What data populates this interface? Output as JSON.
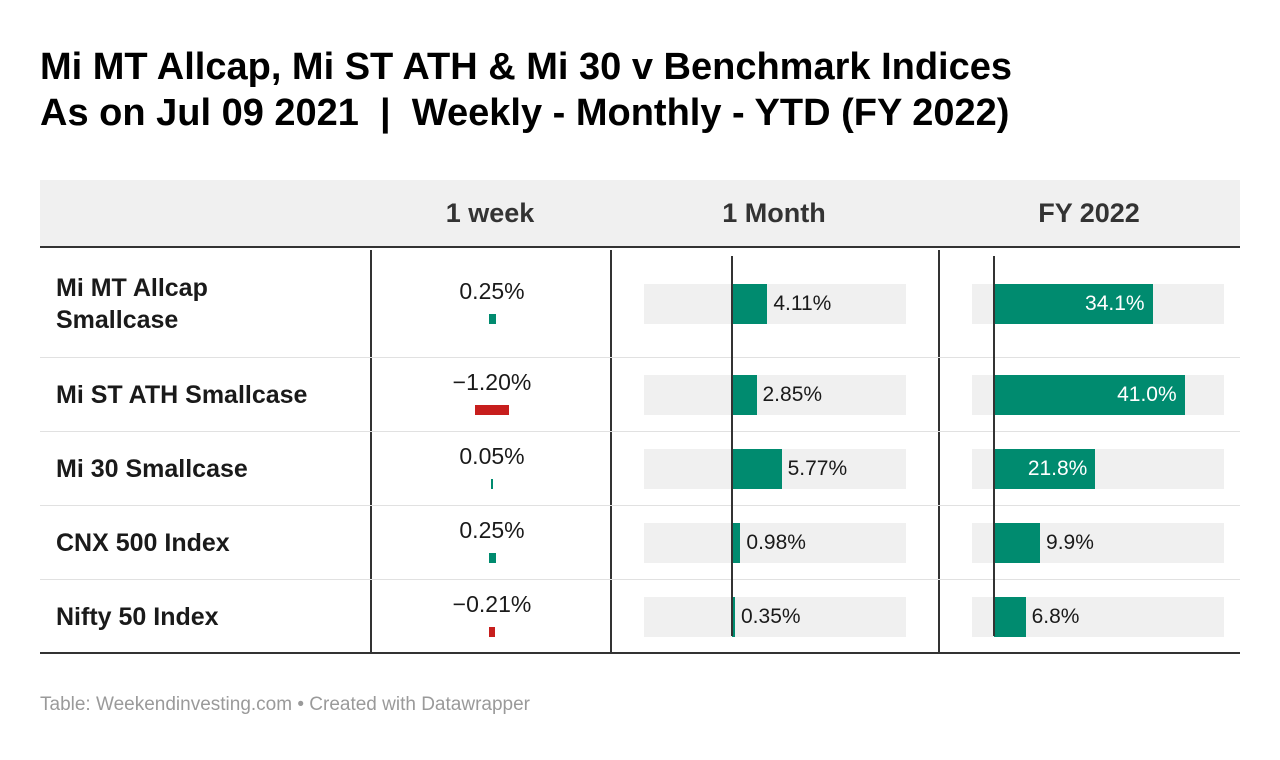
{
  "title_line1": "Mi MT Allcap, Mi ST ATH & Mi 30 v Benchmark Indices",
  "title_line2": "As on Jul 09 2021  |  Weekly - Monthly - YTD (FY 2022)",
  "columns": [
    "",
    "1 week",
    "1 Month",
    "FY 2022"
  ],
  "rows": [
    {
      "label": "Mi MT Allcap Smallcase",
      "week": "0.25%",
      "month": "4.11%",
      "fy": "34.1%"
    },
    {
      "label": "Mi ST ATH Smallcase",
      "week": "−1.20%",
      "month": "2.85%",
      "fy": "41.0%"
    },
    {
      "label": "Mi 30 Smallcase",
      "week": "0.05%",
      "month": "5.77%",
      "fy": "21.8%"
    },
    {
      "label": "CNX 500 Index",
      "week": "0.25%",
      "month": "0.98%",
      "fy": "9.9%"
    },
    {
      "label": "Nifty 50 Index",
      "week": "−0.21%",
      "month": "0.35%",
      "fy": "6.8%"
    }
  ],
  "colors": {
    "positive": "#008b6f",
    "negative": "#c71e1d",
    "bar_bg": "#f0f0f0"
  },
  "chart_data": {
    "type": "table",
    "categories": [
      "Mi MT Allcap Smallcase",
      "Mi ST ATH Smallcase",
      "Mi 30 Smallcase",
      "CNX 500 Index",
      "Nifty 50 Index"
    ],
    "series": [
      {
        "name": "1 week",
        "values": [
          0.25,
          -1.2,
          0.05,
          0.25,
          -0.21
        ]
      },
      {
        "name": "1 Month",
        "values": [
          4.11,
          2.85,
          5.77,
          0.98,
          0.35
        ]
      },
      {
        "name": "FY 2022",
        "values": [
          34.1,
          41.0,
          21.8,
          9.9,
          6.8
        ]
      }
    ]
  },
  "footer": "Table: Weekendinvesting.com • Created with Datawrapper"
}
